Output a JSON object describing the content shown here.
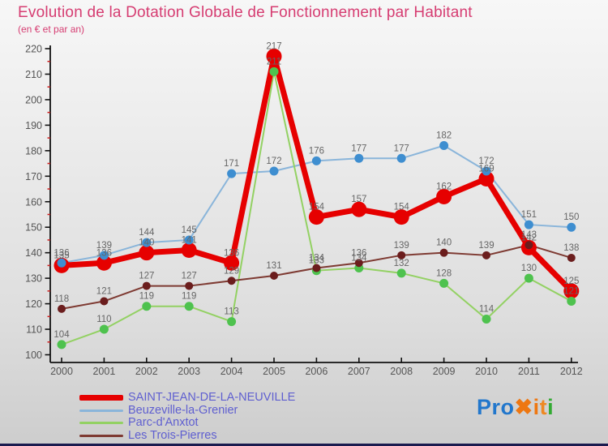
{
  "header": {
    "title": "Evolution de la Dotation Globale de Fonctionnement par Habitant",
    "subtitle": "(en € et par an)"
  },
  "chart_data": {
    "type": "line",
    "title": "Evolution de la Dotation Globale de Fonctionnement par Habitant",
    "subtitle": "(en € et par an)",
    "x": [
      2000,
      2001,
      2002,
      2003,
      2004,
      2005,
      2006,
      2007,
      2008,
      2009,
      2010,
      2011,
      2012
    ],
    "ylim": [
      100,
      220
    ],
    "ytick_major_step": 10,
    "ytick_minor_step": 5,
    "grid": "off",
    "legend_position": "bottom-left",
    "series": [
      {
        "name": "SAINT-JEAN-DE-LA-NEUVILLE",
        "values": [
          135,
          136,
          140,
          141,
          136,
          217,
          154,
          157,
          154,
          162,
          169,
          142,
          125
        ],
        "line_color": "#e60000",
        "dot_color": "#e60000",
        "line_width": 7,
        "dot_radius": 9.5
      },
      {
        "name": "Beuzeville-la-Grenier",
        "values": [
          136,
          139,
          144,
          145,
          171,
          172,
          176,
          177,
          177,
          182,
          172,
          151,
          150
        ],
        "line_color": "#8ab5da",
        "dot_color": "#3e8ed0",
        "line_width": 2,
        "dot_radius": 5.5
      },
      {
        "name": "Parc-d'Anxtot",
        "values": [
          104,
          110,
          119,
          119,
          113,
          211,
          133,
          134,
          132,
          128,
          114,
          130,
          121
        ],
        "line_color": "#93d163",
        "dot_color": "#4ec24e",
        "line_width": 2,
        "dot_radius": 5.5
      },
      {
        "name": "Les Trois-Pierres",
        "values": [
          118,
          121,
          127,
          127,
          129,
          131,
          134,
          136,
          139,
          140,
          139,
          143,
          138
        ],
        "line_color": "#7e3a32",
        "dot_color": "#6b1d1d",
        "line_width": 2,
        "dot_radius": 5
      }
    ],
    "colors": {
      "value_label": "#666666",
      "axis": "#111111",
      "minor_tick": "#cc2222",
      "tick_label": "#555555",
      "title": "#d63d72",
      "legend_text": "#5f5fd0"
    }
  },
  "logo": {
    "segments": [
      {
        "text": "Pro",
        "color": "#2277cc"
      },
      {
        "text": "✖",
        "color": "#ee7711"
      },
      {
        "text": "i",
        "color": "#ee7711"
      },
      {
        "text": "t",
        "color": "#ee8822"
      },
      {
        "text": "i",
        "color": "#33aa33"
      }
    ]
  }
}
